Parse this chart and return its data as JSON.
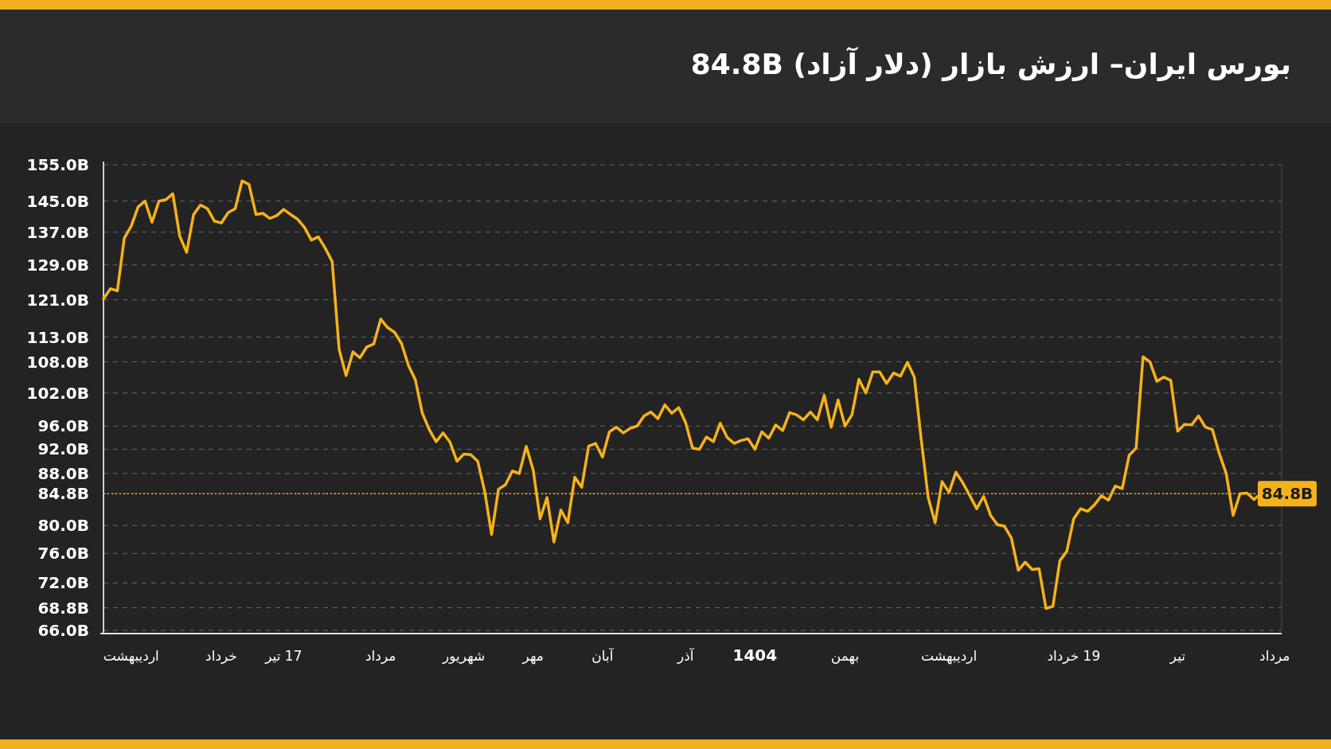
{
  "chart_data": {
    "type": "line",
    "title": "بورس ایران– ارزش بازار (دلار آزاد)   84.8B",
    "categories": [
      null,
      null,
      null,
      null,
      "اردیبهشت",
      null,
      null,
      null,
      null,
      null,
      null,
      null,
      null,
      null,
      null,
      null,
      null,
      "خرداد",
      null,
      null,
      null,
      null,
      null,
      null,
      null,
      null,
      "17 تیر",
      null,
      null,
      null,
      null,
      null,
      null,
      null,
      null,
      null,
      null,
      null,
      null,
      null,
      "مرداد",
      null,
      null,
      null,
      null,
      null,
      null,
      null,
      null,
      null,
      null,
      null,
      "شهریور",
      null,
      null,
      null,
      null,
      null,
      null,
      null,
      null,
      null,
      "مهر",
      null,
      null,
      null,
      null,
      null,
      null,
      null,
      null,
      null,
      "آبان",
      null,
      null,
      null,
      null,
      null,
      null,
      null,
      null,
      null,
      null,
      null,
      "آذر",
      null,
      null,
      null,
      null,
      null,
      null,
      null,
      null,
      null,
      "1404",
      null,
      null,
      null,
      null,
      null,
      null,
      null,
      null,
      null,
      null,
      null,
      null,
      "بهمن",
      null,
      null,
      null,
      null,
      null,
      null,
      null,
      null,
      null,
      null,
      null,
      null,
      null,
      null,
      "اردیبهشت",
      null,
      null,
      null,
      null,
      null,
      null,
      null,
      null,
      null,
      null,
      null,
      null,
      null,
      null,
      null,
      null,
      null,
      "19 خرداد",
      null,
      null,
      null,
      null,
      null,
      null,
      null,
      null,
      null,
      null,
      null,
      null,
      null,
      null,
      "تیر",
      null,
      null,
      null,
      null,
      null,
      null,
      null,
      null,
      null,
      null,
      null,
      null,
      null,
      "مرداد",
      null
    ],
    "series": [
      {
        "color": "#f5b21b",
        "values": [
          121.2,
          123.5,
          123,
          135.5,
          138.5,
          143.5,
          145,
          139.5,
          145,
          145.4,
          147,
          136,
          132,
          141.5,
          144,
          143,
          139.8,
          139.3,
          142,
          143,
          150.5,
          149.5,
          141.5,
          141.8,
          140.5,
          141.2,
          142.8,
          141.5,
          140.3,
          138.2,
          135,
          135.8,
          133,
          129.8,
          110.5,
          105.3,
          110,
          108.8,
          111,
          111.6,
          116.8,
          115,
          114,
          111.7,
          107.3,
          104.5,
          98.3,
          95.4,
          93.3,
          94.8,
          93.2,
          90,
          91.2,
          91.1,
          90,
          85.2,
          78.7,
          85.5,
          86.2,
          88.4,
          88,
          92.5,
          88.6,
          81,
          84.2,
          77.6,
          82.3,
          80.4,
          87.4,
          85.8,
          92.5,
          93,
          90.7,
          95,
          95.8,
          94.8,
          95.6,
          96,
          97.8,
          98.5,
          97.3,
          99.8,
          98.3,
          99.3,
          96.6,
          92.2,
          92,
          94.1,
          93.3,
          96.5,
          94,
          93,
          93.5,
          93.8,
          92,
          95,
          93.9,
          96.2,
          95.2,
          98.4,
          98,
          97.1,
          98.5,
          97.1,
          101.6,
          95.8,
          100.7,
          96,
          98,
          104.6,
          102,
          106,
          106,
          103.8,
          105.8,
          105.2,
          107.9,
          105,
          93.6,
          84.2,
          80.4,
          86.7,
          85,
          88.2,
          86.5,
          84.5,
          82.5,
          84.4,
          81.5,
          80.1,
          79.9,
          78.2,
          73.7,
          74.8,
          73.8,
          73.9,
          68.7,
          69,
          75,
          76.3,
          81,
          82.5,
          82.1,
          83.1,
          84.5,
          83.8,
          86,
          85.6,
          91,
          92.2,
          109,
          108,
          104.2,
          105,
          104.4,
          95.1,
          96.3,
          96.2,
          97.8,
          95.8,
          95.4,
          91.3,
          88,
          81.5,
          84.8,
          84.9,
          83.9,
          84.8,
          null,
          null,
          null
        ]
      }
    ],
    "ylim": [
      66,
      155
    ],
    "yticks": [
      {
        "value": 155,
        "label": "155.0B"
      },
      {
        "value": 145,
        "label": "145.0B"
      },
      {
        "value": 137,
        "label": "137.0B"
      },
      {
        "value": 129,
        "label": "129.0B"
      },
      {
        "value": 121,
        "label": "121.0B"
      },
      {
        "value": 113,
        "label": "113.0B"
      },
      {
        "value": 108,
        "label": "108.0B"
      },
      {
        "value": 102,
        "label": "102.0B"
      },
      {
        "value": 96,
        "label": "96.0B"
      },
      {
        "value": 92,
        "label": "92.0B"
      },
      {
        "value": 88,
        "label": "88.0B"
      },
      {
        "value": 84.8,
        "label": "84.8B"
      },
      {
        "value": 80,
        "label": "80.0B"
      },
      {
        "value": 76,
        "label": "76.0B"
      },
      {
        "value": 72,
        "label": "72.0B"
      },
      {
        "value": 68.8,
        "label": "68.8B"
      },
      {
        "value": 66,
        "label": "66.0B"
      }
    ],
    "log": "y",
    "grid": "y",
    "ref_lines": [
      {
        "axis": "y",
        "value": 84.8,
        "label": "84.8B",
        "color": "#f5b21b",
        "line_style": "dotted"
      }
    ]
  }
}
